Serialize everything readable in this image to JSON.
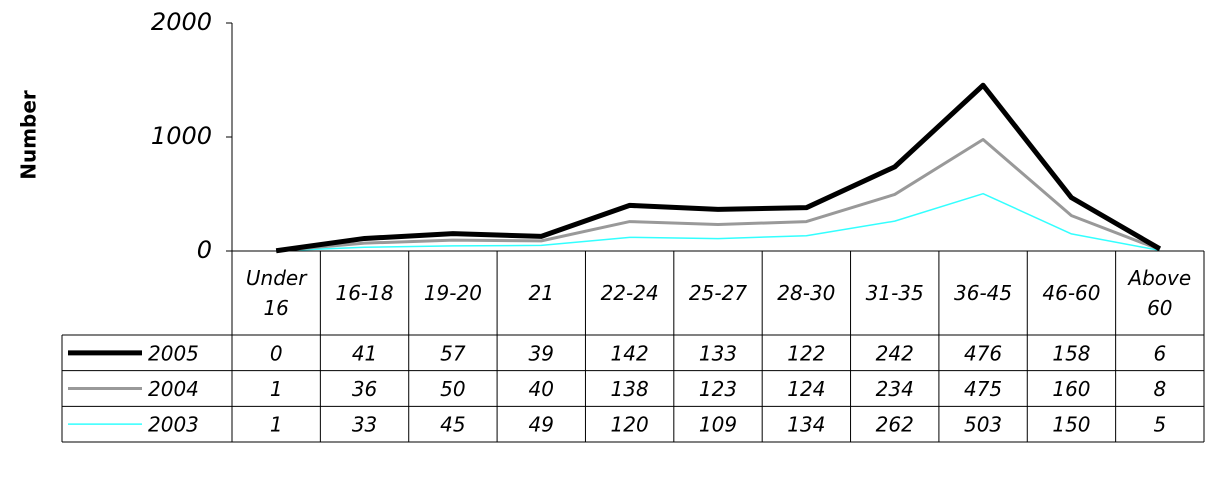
{
  "chart_data": {
    "type": "line",
    "stacked": true,
    "y_label": "Number",
    "categories": [
      "Under 16",
      "16-18",
      "19-20",
      "21",
      "22-24",
      "25-27",
      "28-30",
      "31-35",
      "36-45",
      "46-60",
      "Above 60"
    ],
    "series": [
      {
        "name": "2005",
        "color": "#000000",
        "values": [
          0,
          41,
          57,
          39,
          142,
          133,
          122,
          242,
          476,
          158,
          6
        ]
      },
      {
        "name": "2004",
        "color": "#999999",
        "values": [
          1,
          36,
          50,
          40,
          138,
          123,
          124,
          234,
          475,
          160,
          8
        ]
      },
      {
        "name": "2003",
        "color": "#33ffff",
        "values": [
          1,
          33,
          45,
          49,
          120,
          109,
          134,
          262,
          503,
          150,
          5
        ]
      }
    ],
    "ylim": [
      0,
      2000
    ],
    "yticks": [
      0,
      1000,
      2000
    ],
    "grid": false
  }
}
